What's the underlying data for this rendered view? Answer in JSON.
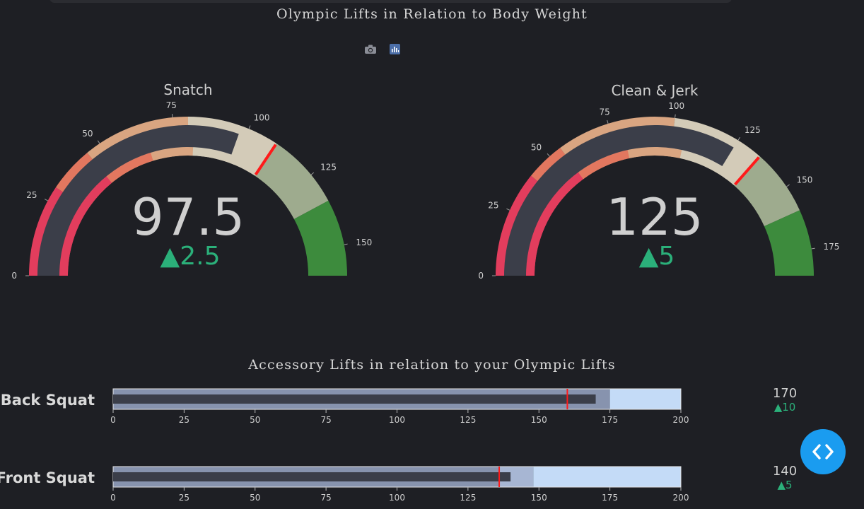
{
  "page": {
    "title": "Olympic Lifts in Relation to Body Weight",
    "subtitle": "Accessory Lifts in relation to your Olympic Lifts"
  },
  "modebar": {
    "icons": [
      "camera-icon",
      "plotly-logo-icon"
    ]
  },
  "colors": {
    "background": "#1e1f24",
    "delta_up": "#2bb07a",
    "threshold": "#ff0000",
    "value_bar": "#3b3e49"
  },
  "chart_data": [
    {
      "type": "gauge",
      "name": "Snatch",
      "title": "Snatch",
      "value": 97.5,
      "delta": 2.5,
      "delta_display": "▲2.5",
      "value_display": "97.5",
      "range": [
        0,
        160
      ],
      "ticks": [
        0,
        25,
        50,
        75,
        100,
        125,
        150
      ],
      "threshold": 110,
      "outer_steps": [
        {
          "range": [
            0,
            30
          ],
          "color": "#e23d5d"
        },
        {
          "range": [
            30,
            45
          ],
          "color": "#e2775f"
        },
        {
          "range": [
            45,
            80
          ],
          "color": "#d9a581"
        },
        {
          "range": [
            80,
            110
          ],
          "color": "#d3cbb8"
        },
        {
          "range": [
            110,
            135
          ],
          "color": "#9eab8e"
        },
        {
          "range": [
            135,
            160
          ],
          "color": "#3d8b3d"
        }
      ],
      "inner_steps": [
        {
          "range": [
            0,
            45
          ],
          "color": "#e23d5d"
        },
        {
          "range": [
            45,
            65
          ],
          "color": "#e2775f"
        },
        {
          "range": [
            65,
            82
          ],
          "color": "#d9a581"
        },
        {
          "range": [
            82,
            100
          ],
          "color": "#d3cbb8"
        }
      ]
    },
    {
      "type": "gauge",
      "name": "Clean & Jerk",
      "title": "Clean & Jerk",
      "value": 125,
      "delta": 5,
      "delta_display": "▲5",
      "value_display": "125",
      "range": [
        0,
        185
      ],
      "ticks": [
        0,
        25,
        50,
        75,
        100,
        125,
        150,
        175
      ],
      "threshold": 135,
      "outer_steps": [
        {
          "range": [
            0,
            40
          ],
          "color": "#e23d5d"
        },
        {
          "range": [
            40,
            55
          ],
          "color": "#e2775f"
        },
        {
          "range": [
            55,
            100
          ],
          "color": "#d9a581"
        },
        {
          "range": [
            100,
            135
          ],
          "color": "#d3cbb8"
        },
        {
          "range": [
            135,
            160
          ],
          "color": "#9eab8e"
        },
        {
          "range": [
            160,
            185
          ],
          "color": "#3d8b3d"
        }
      ],
      "inner_steps": [
        {
          "range": [
            0,
            55
          ],
          "color": "#e23d5d"
        },
        {
          "range": [
            55,
            80
          ],
          "color": "#e2775f"
        },
        {
          "range": [
            80,
            105
          ],
          "color": "#d9a581"
        },
        {
          "range": [
            105,
            130
          ],
          "color": "#d3cbb8"
        }
      ]
    },
    {
      "type": "bullet",
      "name": "Back Squat",
      "label": "Back Squat",
      "value": 170,
      "delta_display": "▲10",
      "value_display": "170",
      "range": [
        0,
        200
      ],
      "ticks": [
        0,
        25,
        50,
        75,
        100,
        125,
        150,
        175,
        200
      ],
      "threshold": 160,
      "steps": [
        {
          "range": [
            0,
            175
          ],
          "color": "#8793ae"
        },
        {
          "range": [
            175,
            200
          ],
          "color": "#c4dbf7"
        }
      ]
    },
    {
      "type": "bullet",
      "name": "Front Squat",
      "label": "Front Squat",
      "value": 140,
      "delta_display": "▲5",
      "value_display": "140",
      "range": [
        0,
        200
      ],
      "ticks": [
        0,
        25,
        50,
        75,
        100,
        125,
        150,
        175,
        200
      ],
      "threshold": 136,
      "steps": [
        {
          "range": [
            0,
            136
          ],
          "color": "#8793ae"
        },
        {
          "range": [
            136,
            148
          ],
          "color": "#a7b6d3"
        },
        {
          "range": [
            148,
            200
          ],
          "color": "#c4dbf7"
        }
      ]
    }
  ]
}
